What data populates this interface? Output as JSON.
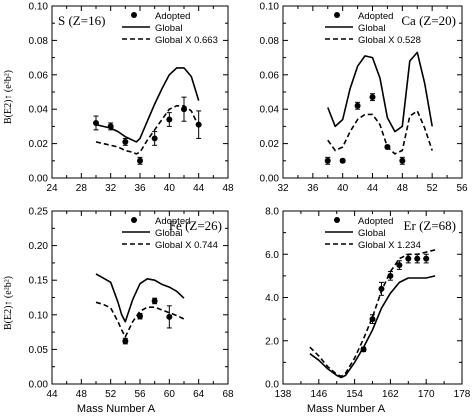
{
  "figure": {
    "xlabel": "Mass Number A",
    "ylabel": "B(E2)↑ (e²b²)"
  },
  "chart_data": [
    {
      "type": "line",
      "title": "S (Z=16)",
      "xlim": [
        24,
        48
      ],
      "ylim": [
        0,
        0.1
      ],
      "xticks": [
        24,
        28,
        32,
        36,
        40,
        44,
        48
      ],
      "yticks": [
        0.0,
        0.02,
        0.04,
        0.06,
        0.08,
        0.1
      ],
      "yticklabels": [
        "0.00",
        "0.02",
        "0.04",
        "0.06",
        "0.08",
        "0.10"
      ],
      "legend": [
        "Adopted",
        "Global",
        "Global X 0.663"
      ],
      "series": [
        {
          "name": "Adopted",
          "style": "points",
          "x": [
            30,
            32,
            34,
            36,
            38,
            40,
            42,
            44
          ],
          "y": [
            0.032,
            0.03,
            0.021,
            0.01,
            0.023,
            0.034,
            0.04,
            0.031
          ],
          "err": [
            0.004,
            0.002,
            0.002,
            0.002,
            0.004,
            0.004,
            0.007,
            0.008
          ]
        },
        {
          "name": "Global",
          "style": "solid",
          "x": [
            30,
            31,
            32,
            33,
            34,
            35,
            35.5,
            36,
            37,
            38,
            39,
            40,
            41,
            42,
            43,
            44
          ],
          "y": [
            0.031,
            0.03,
            0.029,
            0.027,
            0.024,
            0.022,
            0.021,
            0.023,
            0.033,
            0.043,
            0.052,
            0.06,
            0.064,
            0.064,
            0.059,
            0.045
          ]
        },
        {
          "name": "Global X 0.663",
          "style": "dashed",
          "x": [
            30,
            31,
            32,
            33,
            34,
            35,
            35.5,
            36,
            37,
            38,
            39,
            40,
            41,
            42,
            43,
            44
          ],
          "y": [
            0.021,
            0.02,
            0.019,
            0.018,
            0.016,
            0.015,
            0.014,
            0.015,
            0.022,
            0.028,
            0.034,
            0.04,
            0.042,
            0.042,
            0.039,
            0.03
          ]
        }
      ]
    },
    {
      "type": "line",
      "title": "Ca (Z=20)",
      "xlim": [
        32,
        56
      ],
      "ylim": [
        0,
        0.1
      ],
      "xticks": [
        32,
        36,
        40,
        44,
        48,
        52,
        56
      ],
      "yticks": [
        0.0,
        0.02,
        0.04,
        0.06,
        0.08,
        0.1
      ],
      "yticklabels": [
        "0.00",
        "0.02",
        "0.04",
        "0.06",
        "0.08",
        "0.10"
      ],
      "legend": [
        "Adopted",
        "Global",
        "Global X 0.528"
      ],
      "series": [
        {
          "name": "Adopted",
          "style": "points",
          "x": [
            38,
            40,
            42,
            44,
            46,
            48
          ],
          "y": [
            0.01,
            0.01,
            0.042,
            0.047,
            0.018,
            0.01
          ],
          "err": [
            0.002,
            0.001,
            0.002,
            0.002,
            0.001,
            0.002
          ]
        },
        {
          "name": "Global",
          "style": "solid",
          "x": [
            38,
            39,
            40,
            41,
            42,
            43,
            44,
            45,
            46,
            47,
            48,
            49,
            50,
            51,
            52
          ],
          "y": [
            0.041,
            0.03,
            0.034,
            0.052,
            0.065,
            0.071,
            0.07,
            0.058,
            0.035,
            0.027,
            0.03,
            0.068,
            0.073,
            0.055,
            0.03
          ]
        },
        {
          "name": "Global X 0.528",
          "style": "dashed",
          "x": [
            38,
            39,
            40,
            41,
            42,
            43,
            44,
            45,
            46,
            47,
            48,
            49,
            50,
            51,
            52
          ],
          "y": [
            0.022,
            0.016,
            0.018,
            0.027,
            0.034,
            0.037,
            0.037,
            0.031,
            0.018,
            0.014,
            0.016,
            0.036,
            0.039,
            0.029,
            0.016
          ]
        }
      ]
    },
    {
      "type": "line",
      "title": "Fe (Z=26)",
      "xlim": [
        44,
        68
      ],
      "ylim": [
        0,
        0.25
      ],
      "xticks": [
        44,
        48,
        52,
        56,
        60,
        64,
        68
      ],
      "yticks": [
        0.0,
        0.05,
        0.1,
        0.15,
        0.2,
        0.25
      ],
      "yticklabels": [
        "0.00",
        "0.05",
        "0.10",
        "0.15",
        "0.20",
        "0.25"
      ],
      "legend": [
        "Adopted",
        "Global",
        "Global X 0.744"
      ],
      "series": [
        {
          "name": "Adopted",
          "style": "points",
          "x": [
            54,
            56,
            58,
            60
          ],
          "y": [
            0.062,
            0.098,
            0.12,
            0.097
          ],
          "err": [
            0.004,
            0.004,
            0.004,
            0.016
          ]
        },
        {
          "name": "Global",
          "style": "solid",
          "x": [
            50,
            51,
            52,
            53,
            53.5,
            54,
            55,
            56,
            57,
            58,
            59,
            60,
            61,
            62
          ],
          "y": [
            0.159,
            0.153,
            0.147,
            0.118,
            0.1,
            0.09,
            0.122,
            0.145,
            0.152,
            0.15,
            0.144,
            0.14,
            0.134,
            0.124
          ]
        },
        {
          "name": "Global X 0.744",
          "style": "dashed",
          "x": [
            50,
            51,
            52,
            53,
            53.5,
            54,
            55,
            56,
            57,
            58,
            59,
            60,
            61,
            62
          ],
          "y": [
            0.118,
            0.115,
            0.11,
            0.09,
            0.078,
            0.068,
            0.09,
            0.105,
            0.111,
            0.111,
            0.107,
            0.103,
            0.099,
            0.094
          ]
        }
      ]
    },
    {
      "type": "line",
      "title": "Er (Z=68)",
      "xlim": [
        138,
        178
      ],
      "ylim": [
        0,
        8.0
      ],
      "xticks": [
        138,
        146,
        154,
        162,
        170,
        178
      ],
      "yticks": [
        0,
        2,
        4,
        6,
        8
      ],
      "yticklabels": [
        "0.0",
        "2.0",
        "4.0",
        "6.0",
        "8.0"
      ],
      "legend": [
        "Adopted",
        "Global",
        "Global X 1.234"
      ],
      "series": [
        {
          "name": "Adopted",
          "style": "points",
          "x": [
            156,
            158,
            160,
            162,
            164,
            166,
            168,
            170
          ],
          "y": [
            1.6,
            3.0,
            4.4,
            5.0,
            5.5,
            5.8,
            5.8,
            5.8
          ],
          "err": [
            0.1,
            0.2,
            0.3,
            0.2,
            0.2,
            0.2,
            0.2,
            0.2
          ]
        },
        {
          "name": "Global",
          "style": "solid",
          "x": [
            144,
            146,
            148,
            150,
            151,
            152,
            154,
            156,
            158,
            160,
            162,
            164,
            166,
            168,
            170,
            172
          ],
          "y": [
            1.4,
            1.1,
            0.7,
            0.4,
            0.3,
            0.4,
            1.0,
            1.7,
            2.5,
            3.5,
            4.2,
            4.7,
            4.9,
            4.9,
            4.9,
            5.0
          ]
        },
        {
          "name": "Global X 1.234",
          "style": "dashed",
          "x": [
            144,
            146,
            148,
            150,
            151,
            152,
            154,
            156,
            158,
            160,
            162,
            164,
            166,
            168,
            170,
            172
          ],
          "y": [
            1.7,
            1.3,
            0.8,
            0.45,
            0.35,
            0.5,
            1.2,
            2.1,
            3.1,
            4.3,
            5.2,
            5.8,
            6.0,
            6.0,
            6.1,
            6.2
          ]
        }
      ]
    }
  ]
}
